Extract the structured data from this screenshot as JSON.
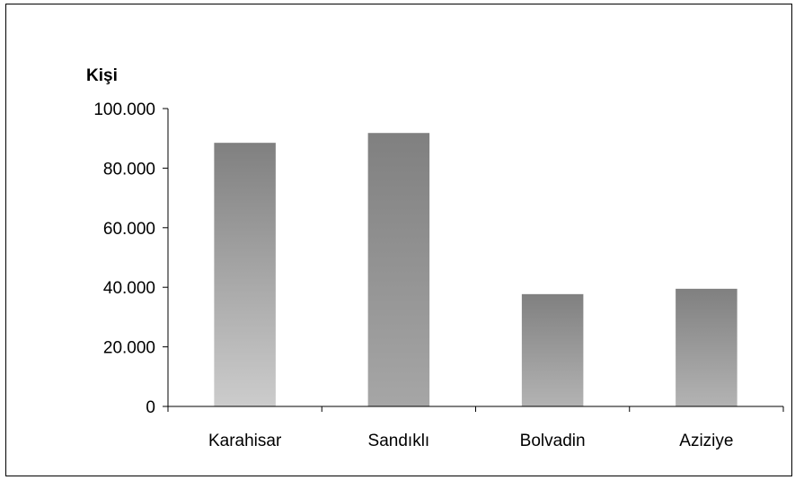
{
  "chart_data": {
    "type": "bar",
    "title": "",
    "xlabel": "",
    "ylabel": "Kişi",
    "categories": [
      "Karahisar",
      "Sandıklı",
      "Bolvadin",
      "Aziziye"
    ],
    "values": [
      88500,
      91800,
      37700,
      39500
    ],
    "ylim": [
      0,
      100000
    ],
    "yticks": [
      0,
      20000,
      40000,
      60000,
      80000,
      100000
    ],
    "ytick_labels": [
      "0",
      "20.000",
      "40.000",
      "60.000",
      "80.000",
      "100.000"
    ],
    "grid": false,
    "legend": "none",
    "bar_colors": [
      {
        "top": "#808080",
        "bottom": "#cccccc"
      },
      {
        "top": "#808080",
        "bottom": "#a6a6a6"
      },
      {
        "top": "#808080",
        "bottom": "#b3b3b3"
      },
      {
        "top": "#808080",
        "bottom": "#b3b3b3"
      }
    ]
  }
}
